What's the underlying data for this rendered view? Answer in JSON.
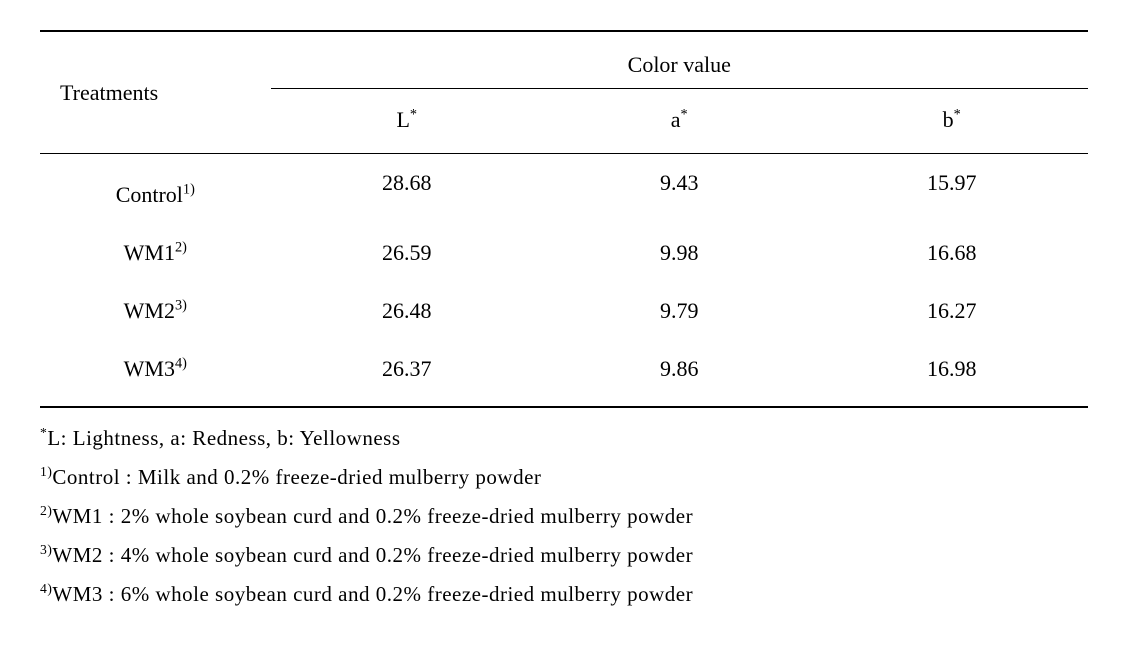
{
  "table": {
    "header": {
      "treatments": "Treatments",
      "color_value": "Color value",
      "L": "L",
      "a": "a",
      "b": "b",
      "sup": "*"
    },
    "rows": [
      {
        "name": "Control",
        "sup": "1)",
        "L": "28.68",
        "a": "9.43",
        "b": "15.97"
      },
      {
        "name": "WM1",
        "sup": "2)",
        "L": "26.59",
        "a": "9.98",
        "b": "16.68"
      },
      {
        "name": "WM2",
        "sup": "3)",
        "L": "26.48",
        "a": "9.79",
        "b": "16.27"
      },
      {
        "name": "WM3",
        "sup": "4)",
        "L": "26.37",
        "a": "9.86",
        "b": "16.98"
      }
    ]
  },
  "footnotes": {
    "star": "L: Lightness, a: Redness, b: Yellowness",
    "n1": "Control : Milk and  0.2% freeze-dried mulberry powder",
    "n2": "WM1 : 2% whole soybean curd and 0.2% freeze-dried mulberry powder",
    "n3": "WM2 : 4% whole soybean curd and  0.2% freeze-dried mulberry powder",
    "n4": "WM3 : 6% whole soybean curd and  0.2% freeze-dried mulberry powder"
  },
  "sups": {
    "star": "*",
    "p1": "1)",
    "p2": "2)",
    "p3": "3)",
    "p4": "4)"
  }
}
